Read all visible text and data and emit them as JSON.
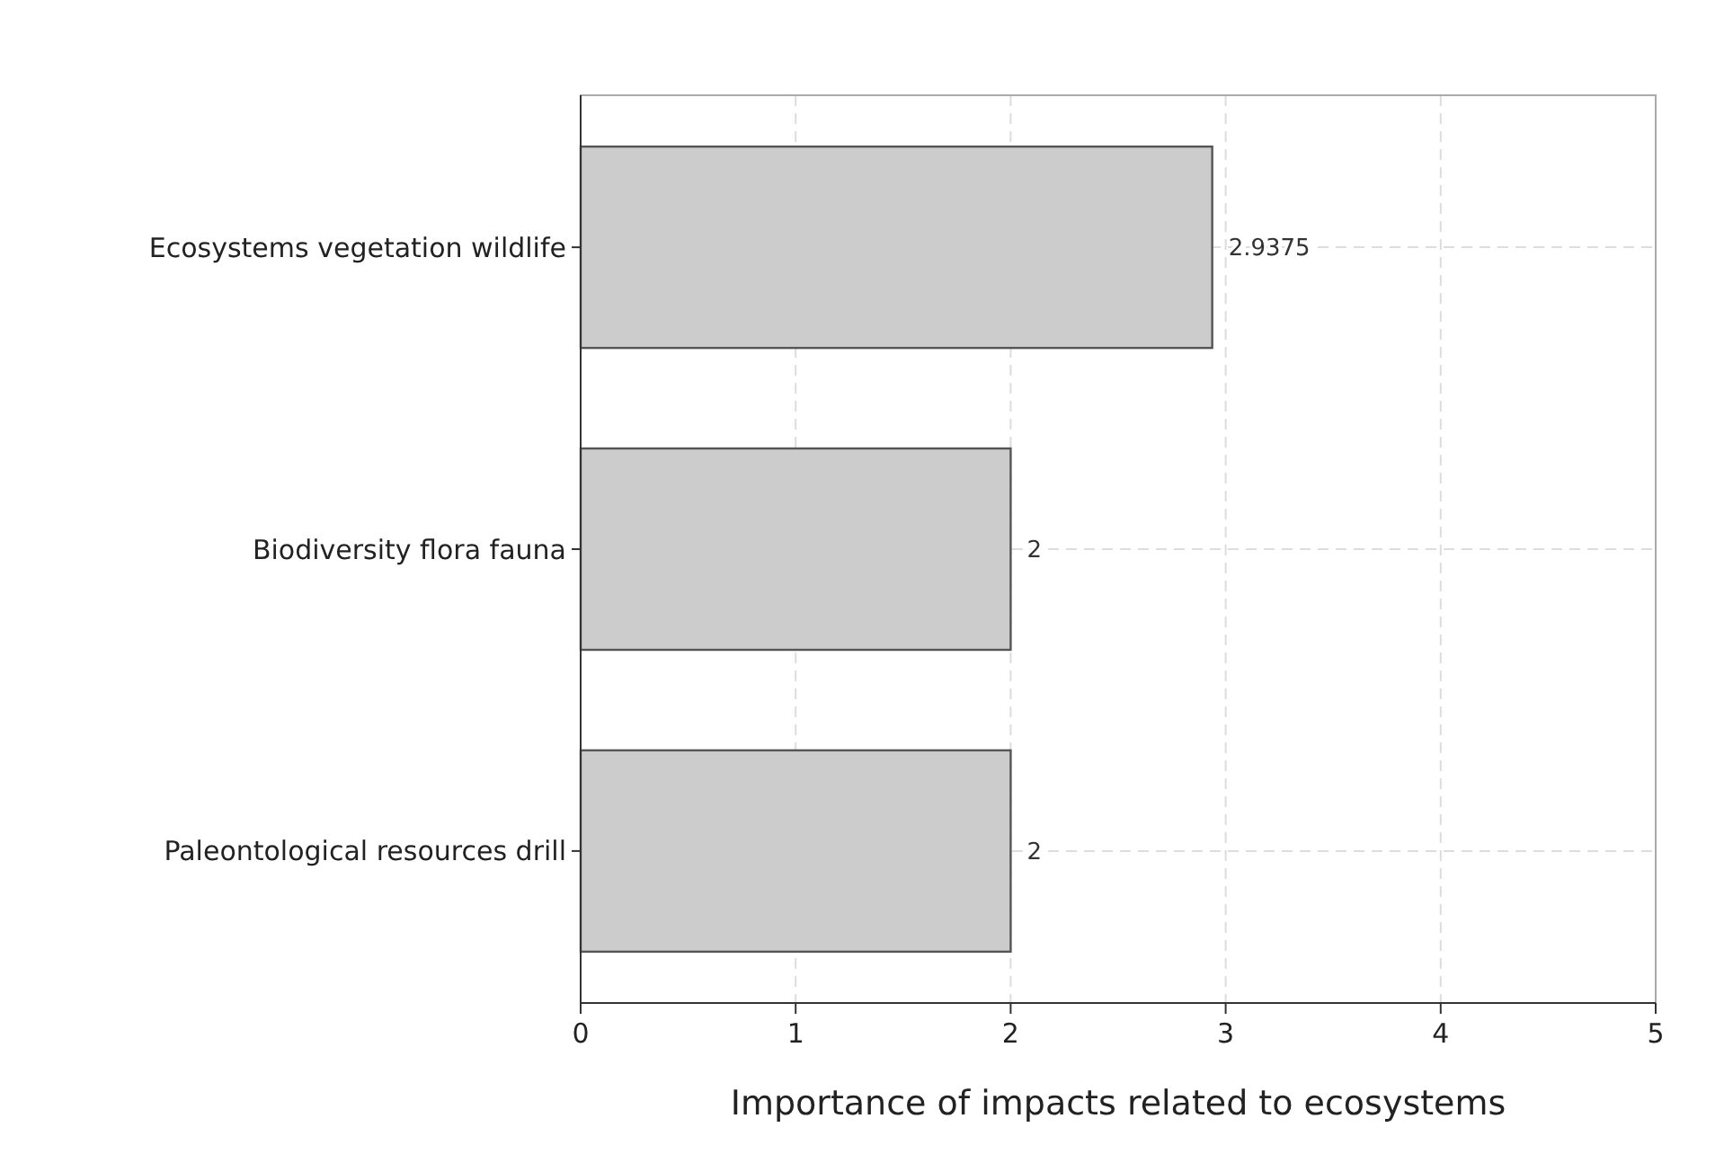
{
  "chart_data": {
    "type": "bar",
    "orientation": "horizontal",
    "xlabel": "Importance of impacts related to ecosystems",
    "categories": [
      "Ecosystems vegetation wildlife",
      "Biodiversity flora fauna",
      "Paleontological resources drill"
    ],
    "values": [
      2.9375,
      2,
      2
    ],
    "color": "#cccccc",
    "xlim": [
      0,
      5
    ],
    "xticks": [
      0,
      1,
      2,
      3,
      4,
      5
    ],
    "grid": true,
    "data_labels": true
  }
}
